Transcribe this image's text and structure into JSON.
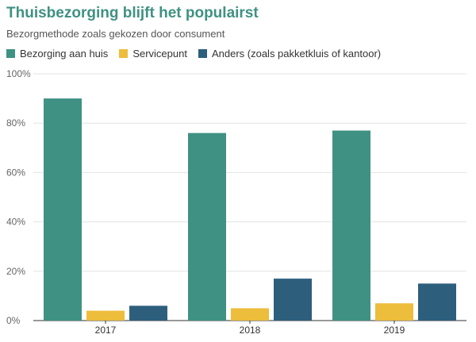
{
  "chart_data": {
    "type": "bar",
    "title": "Thuisbezorging blijft het populairst",
    "subtitle": "Bezorgmethode zoals gekozen door consument",
    "categories": [
      "2017",
      "2018",
      "2019"
    ],
    "series": [
      {
        "name": "Bezorging aan huis",
        "values": [
          90,
          76,
          77
        ],
        "color": "#3f9183"
      },
      {
        "name": "Servicepunt",
        "values": [
          4,
          5,
          7
        ],
        "color": "#edbd3c"
      },
      {
        "name": "Anders (zoals pakketkluis of kantoor)",
        "values": [
          6,
          17,
          15
        ],
        "color": "#2d5f7d"
      }
    ],
    "ylim": [
      0,
      100
    ],
    "yticks": [
      "0%",
      "20%",
      "40%",
      "60%",
      "80%",
      "100%"
    ],
    "ytick_values": [
      0,
      20,
      40,
      60,
      80,
      100
    ],
    "grid": true,
    "legend_position": "top-left"
  }
}
